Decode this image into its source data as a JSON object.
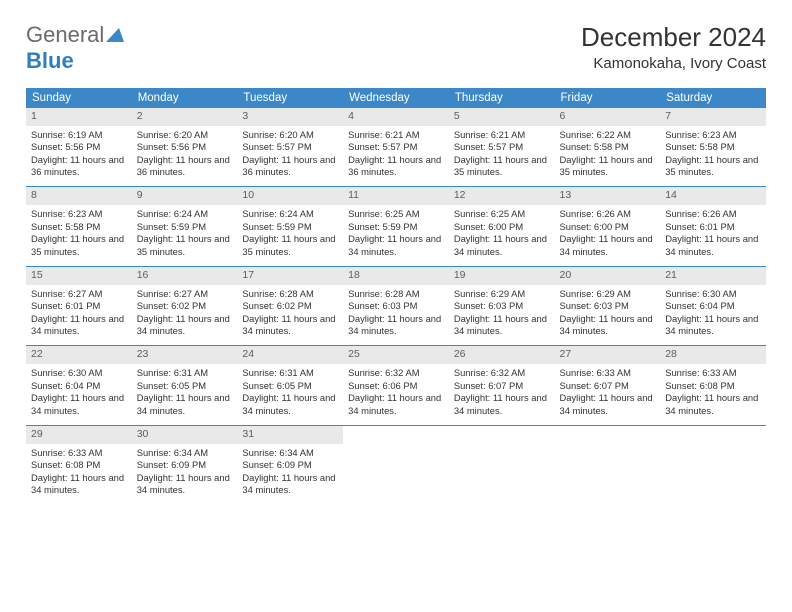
{
  "logo": {
    "text1": "General",
    "text2": "Blue",
    "color_general": "#6b6b6b",
    "color_blue": "#2f7fbf",
    "tri_color": "#3b87c8"
  },
  "title": "December 2024",
  "location": "Kamonokaha, Ivory Coast",
  "styling": {
    "header_bg": "#3b87c8",
    "header_text": "#ffffff",
    "daynum_bg": "#e9e9e9",
    "daynum_text": "#5d5d5d",
    "row_border": "#3b87c8",
    "body_text": "#333333",
    "page_bg": "#ffffff",
    "title_fontsize": 26,
    "location_fontsize": 15,
    "th_fontsize": 11.5,
    "cell_fontsize": 9.4
  },
  "weekdays": [
    "Sunday",
    "Monday",
    "Tuesday",
    "Wednesday",
    "Thursday",
    "Friday",
    "Saturday"
  ],
  "days": [
    {
      "n": 1,
      "sr": "6:19 AM",
      "ss": "5:56 PM",
      "dl": "11 hours and 36 minutes."
    },
    {
      "n": 2,
      "sr": "6:20 AM",
      "ss": "5:56 PM",
      "dl": "11 hours and 36 minutes."
    },
    {
      "n": 3,
      "sr": "6:20 AM",
      "ss": "5:57 PM",
      "dl": "11 hours and 36 minutes."
    },
    {
      "n": 4,
      "sr": "6:21 AM",
      "ss": "5:57 PM",
      "dl": "11 hours and 36 minutes."
    },
    {
      "n": 5,
      "sr": "6:21 AM",
      "ss": "5:57 PM",
      "dl": "11 hours and 35 minutes."
    },
    {
      "n": 6,
      "sr": "6:22 AM",
      "ss": "5:58 PM",
      "dl": "11 hours and 35 minutes."
    },
    {
      "n": 7,
      "sr": "6:23 AM",
      "ss": "5:58 PM",
      "dl": "11 hours and 35 minutes."
    },
    {
      "n": 8,
      "sr": "6:23 AM",
      "ss": "5:58 PM",
      "dl": "11 hours and 35 minutes."
    },
    {
      "n": 9,
      "sr": "6:24 AM",
      "ss": "5:59 PM",
      "dl": "11 hours and 35 minutes."
    },
    {
      "n": 10,
      "sr": "6:24 AM",
      "ss": "5:59 PM",
      "dl": "11 hours and 35 minutes."
    },
    {
      "n": 11,
      "sr": "6:25 AM",
      "ss": "5:59 PM",
      "dl": "11 hours and 34 minutes."
    },
    {
      "n": 12,
      "sr": "6:25 AM",
      "ss": "6:00 PM",
      "dl": "11 hours and 34 minutes."
    },
    {
      "n": 13,
      "sr": "6:26 AM",
      "ss": "6:00 PM",
      "dl": "11 hours and 34 minutes."
    },
    {
      "n": 14,
      "sr": "6:26 AM",
      "ss": "6:01 PM",
      "dl": "11 hours and 34 minutes."
    },
    {
      "n": 15,
      "sr": "6:27 AM",
      "ss": "6:01 PM",
      "dl": "11 hours and 34 minutes."
    },
    {
      "n": 16,
      "sr": "6:27 AM",
      "ss": "6:02 PM",
      "dl": "11 hours and 34 minutes."
    },
    {
      "n": 17,
      "sr": "6:28 AM",
      "ss": "6:02 PM",
      "dl": "11 hours and 34 minutes."
    },
    {
      "n": 18,
      "sr": "6:28 AM",
      "ss": "6:03 PM",
      "dl": "11 hours and 34 minutes."
    },
    {
      "n": 19,
      "sr": "6:29 AM",
      "ss": "6:03 PM",
      "dl": "11 hours and 34 minutes."
    },
    {
      "n": 20,
      "sr": "6:29 AM",
      "ss": "6:03 PM",
      "dl": "11 hours and 34 minutes."
    },
    {
      "n": 21,
      "sr": "6:30 AM",
      "ss": "6:04 PM",
      "dl": "11 hours and 34 minutes."
    },
    {
      "n": 22,
      "sr": "6:30 AM",
      "ss": "6:04 PM",
      "dl": "11 hours and 34 minutes."
    },
    {
      "n": 23,
      "sr": "6:31 AM",
      "ss": "6:05 PM",
      "dl": "11 hours and 34 minutes."
    },
    {
      "n": 24,
      "sr": "6:31 AM",
      "ss": "6:05 PM",
      "dl": "11 hours and 34 minutes."
    },
    {
      "n": 25,
      "sr": "6:32 AM",
      "ss": "6:06 PM",
      "dl": "11 hours and 34 minutes."
    },
    {
      "n": 26,
      "sr": "6:32 AM",
      "ss": "6:07 PM",
      "dl": "11 hours and 34 minutes."
    },
    {
      "n": 27,
      "sr": "6:33 AM",
      "ss": "6:07 PM",
      "dl": "11 hours and 34 minutes."
    },
    {
      "n": 28,
      "sr": "6:33 AM",
      "ss": "6:08 PM",
      "dl": "11 hours and 34 minutes."
    },
    {
      "n": 29,
      "sr": "6:33 AM",
      "ss": "6:08 PM",
      "dl": "11 hours and 34 minutes."
    },
    {
      "n": 30,
      "sr": "6:34 AM",
      "ss": "6:09 PM",
      "dl": "11 hours and 34 minutes."
    },
    {
      "n": 31,
      "sr": "6:34 AM",
      "ss": "6:09 PM",
      "dl": "11 hours and 34 minutes."
    }
  ],
  "labels": {
    "sunrise": "Sunrise:",
    "sunset": "Sunset:",
    "daylight": "Daylight:"
  }
}
